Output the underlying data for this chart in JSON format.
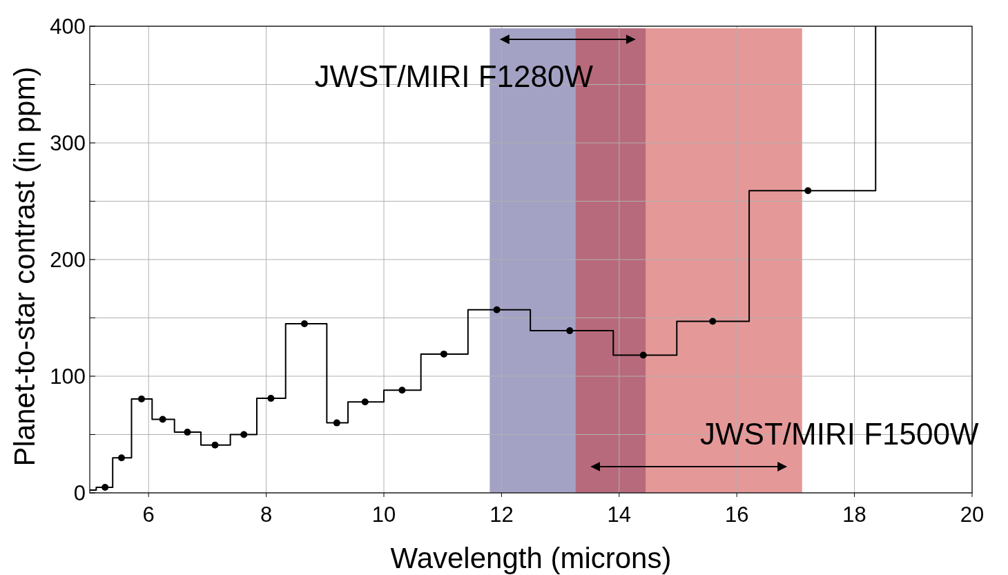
{
  "chart_data": {
    "type": "step",
    "xlabel": "Wavelength (microns)",
    "ylabel": "Planet-to-star contrast (in ppm)",
    "xlim": [
      5,
      20
    ],
    "xticks": [
      6,
      8,
      10,
      12,
      14,
      16,
      18,
      20
    ],
    "ylim": [
      0,
      400
    ],
    "yticks": [
      0,
      {
        "value": 50,
        "label": null
      },
      100,
      {
        "value": 150,
        "label": null
      },
      200,
      {
        "value": 250,
        "label": null
      },
      300,
      {
        "value": 350,
        "label": null
      },
      400
    ],
    "grid": true,
    "series": [
      {
        "color": "#000000",
        "x": [
          5.0,
          5.11,
          5.39,
          5.71,
          6.06,
          6.44,
          6.89,
          7.39,
          7.84,
          8.33,
          9.03,
          9.39,
          10.0,
          10.63,
          11.43,
          12.49,
          13.9,
          14.98,
          16.21,
          18.36
        ],
        "values": [
          2.4,
          4.7,
          30,
          80.5,
          63,
          52,
          41,
          50,
          81,
          145,
          60,
          78,
          88,
          119,
          157,
          139,
          118,
          147,
          259,
          400
        ]
      },
      {
        "type": "scatter",
        "color": "#000000",
        "marker": "circle",
        "x": [
          5.26,
          5.54,
          5.88,
          6.24,
          6.66,
          7.13,
          7.62,
          8.08,
          8.65,
          9.2,
          9.68,
          10.31,
          11.02,
          11.92,
          13.16,
          14.41,
          15.59,
          17.21
        ],
        "values": [
          4.7,
          30,
          80.5,
          63,
          52,
          41,
          50,
          81,
          145,
          60,
          78,
          88,
          119,
          157,
          139,
          118,
          147,
          259
        ]
      }
    ],
    "bands": [
      {
        "axis": "x",
        "from": 11.8,
        "to": 14.45,
        "label": "JWST/MIRI F1280W",
        "color": "#47458a"
      },
      {
        "axis": "x",
        "from": 13.26,
        "to": 17.11,
        "label": "JWST/MIRI F1500W",
        "color": "#cc3131"
      }
    ]
  }
}
